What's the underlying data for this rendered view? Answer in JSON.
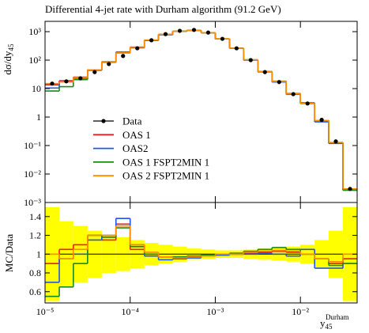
{
  "chart_data": [
    {
      "type": "histogram",
      "title": "Differential 4-jet rate with Durham algorithm (91.2 GeV)",
      "y_label": {
        "text": "dσ/dy",
        "subscript": "45"
      },
      "log_x": true,
      "log_y": true,
      "bins": [
        1e-05,
        1.47e-05,
        2.15e-05,
        3.16e-05,
        4.64e-05,
        6.81e-05,
        0.0001,
        0.000147,
        0.000215,
        0.000316,
        0.000464,
        0.000681,
        0.001,
        0.00147,
        0.00215,
        0.00316,
        0.00464,
        0.00681,
        0.01,
        0.0147,
        0.0215,
        0.0316,
        0.0464
      ],
      "xlim": [
        1e-05,
        0.0464
      ],
      "ylim": [
        0.001,
        2300
      ],
      "yticks": [
        {
          "value": 1000,
          "label": "10³"
        },
        {
          "value": 100,
          "label": "10²"
        },
        10,
        1,
        {
          "value": 0.1,
          "label": "10⁻¹"
        },
        {
          "value": 0.01,
          "label": "10⁻²"
        },
        {
          "value": 0.001,
          "label": "10⁻³"
        }
      ],
      "legend": "lower left",
      "series": [
        {
          "name": "Data",
          "color": "#000000",
          "style": "points",
          "values": [
            15,
            18,
            23,
            38,
            73,
            140,
            260,
            500,
            820,
            1070,
            1150,
            930,
            560,
            260,
            100,
            38,
            17,
            6.4,
            3,
            0.8,
            0.14,
            0.003
          ]
        },
        {
          "name": "OAS 1",
          "color": "#ee1c1c",
          "style": "steps",
          "values": [
            13.5,
            18.9,
            25.3,
            45.6,
            84,
            185,
            273,
            500,
            795,
            1027,
            1116,
            911,
            554,
            260,
            101,
            38.8,
            17.5,
            6.5,
            3,
            0.76,
            0.126,
            0.00285
          ]
        },
        {
          "name": "OAS2",
          "color": "#2255ee",
          "style": "steps",
          "values": [
            10.5,
            17.1,
            23,
            43.7,
            87.6,
            193,
            286,
            490,
            771,
            1017,
            1104,
            911,
            554,
            260,
            100,
            38.4,
            17,
            6.27,
            3.15,
            0.68,
            0.119,
            0.0027
          ]
        },
        {
          "name": "OAS 1 FSPT2MIN 1",
          "color": "#1a8a1a",
          "style": "steps",
          "values": [
            8.25,
            11.7,
            20.7,
            45.6,
            86.1,
            179,
            281,
            500,
            795,
            1038,
            1127,
            921,
            560,
            263,
            103,
            39.9,
            18.2,
            6.72,
            3,
            0.76,
            0.123,
            0.0027
          ]
        },
        {
          "name": "OAS 2 FSPT2MIN 1",
          "color": "#ff8c00",
          "style": "steps",
          "values": [
            15,
            17.1,
            24.2,
            45.6,
            87.6,
            182,
            286,
            510,
            795,
            1027,
            1116,
            911,
            560,
            260,
            102,
            39.1,
            17.7,
            6.59,
            3,
            0.76,
            0.129,
            0.003
          ]
        }
      ]
    },
    {
      "type": "ratio",
      "y_label": "MC/Data",
      "x_label": {
        "symbol": "y",
        "subscript": "45",
        "superscript": "Durham"
      },
      "log_x": true,
      "xlim": [
        1e-05,
        0.0464
      ],
      "xticks": [
        {
          "value": 1e-05,
          "label": "10⁻⁵"
        },
        {
          "value": 0.0001,
          "label": "10⁻⁴"
        },
        {
          "value": 0.001,
          "label": "10⁻³"
        },
        {
          "value": 0.01,
          "label": "10⁻²"
        }
      ],
      "ylim": [
        0.48,
        1.55
      ],
      "yticks": [
        0.6,
        0.8,
        1,
        1.2,
        1.4
      ],
      "reference_line": 1,
      "band_color": "#ffff00",
      "data_uncertainty": [
        0.5,
        0.35,
        0.3,
        0.25,
        0.2,
        0.18,
        0.15,
        0.12,
        0.1,
        0.08,
        0.06,
        0.05,
        0.04,
        0.04,
        0.05,
        0.06,
        0.07,
        0.08,
        0.1,
        0.15,
        0.25,
        0.5
      ],
      "series": [
        {
          "color": "#ee1c1c",
          "values": [
            0.9,
            1.05,
            1.1,
            1.2,
            1.15,
            1.32,
            1.05,
            1.0,
            0.97,
            0.96,
            0.97,
            0.98,
            0.99,
            1.0,
            1.01,
            1.02,
            1.03,
            1.02,
            1.0,
            0.95,
            0.9,
            0.95
          ]
        },
        {
          "color": "#2255ee",
          "values": [
            0.7,
            0.95,
            1.0,
            1.15,
            1.2,
            1.38,
            1.1,
            0.98,
            0.94,
            0.95,
            0.96,
            0.98,
            0.99,
            1.0,
            1.0,
            1.01,
            1.0,
            0.98,
            1.05,
            0.85,
            0.85,
            0.9
          ]
        },
        {
          "color": "#1a8a1a",
          "values": [
            0.55,
            0.65,
            0.9,
            1.2,
            1.18,
            1.28,
            1.08,
            1.0,
            0.97,
            0.97,
            0.98,
            0.99,
            1.0,
            1.01,
            1.03,
            1.05,
            1.07,
            1.05,
            1.0,
            0.95,
            0.88,
            0.9
          ]
        },
        {
          "color": "#ff8c00",
          "values": [
            1.0,
            0.95,
            1.05,
            1.2,
            1.2,
            1.3,
            1.1,
            1.02,
            0.97,
            0.96,
            0.97,
            0.98,
            1.0,
            1.0,
            1.02,
            1.03,
            1.04,
            1.03,
            1.0,
            0.95,
            0.92,
            1.0
          ]
        }
      ]
    }
  ]
}
